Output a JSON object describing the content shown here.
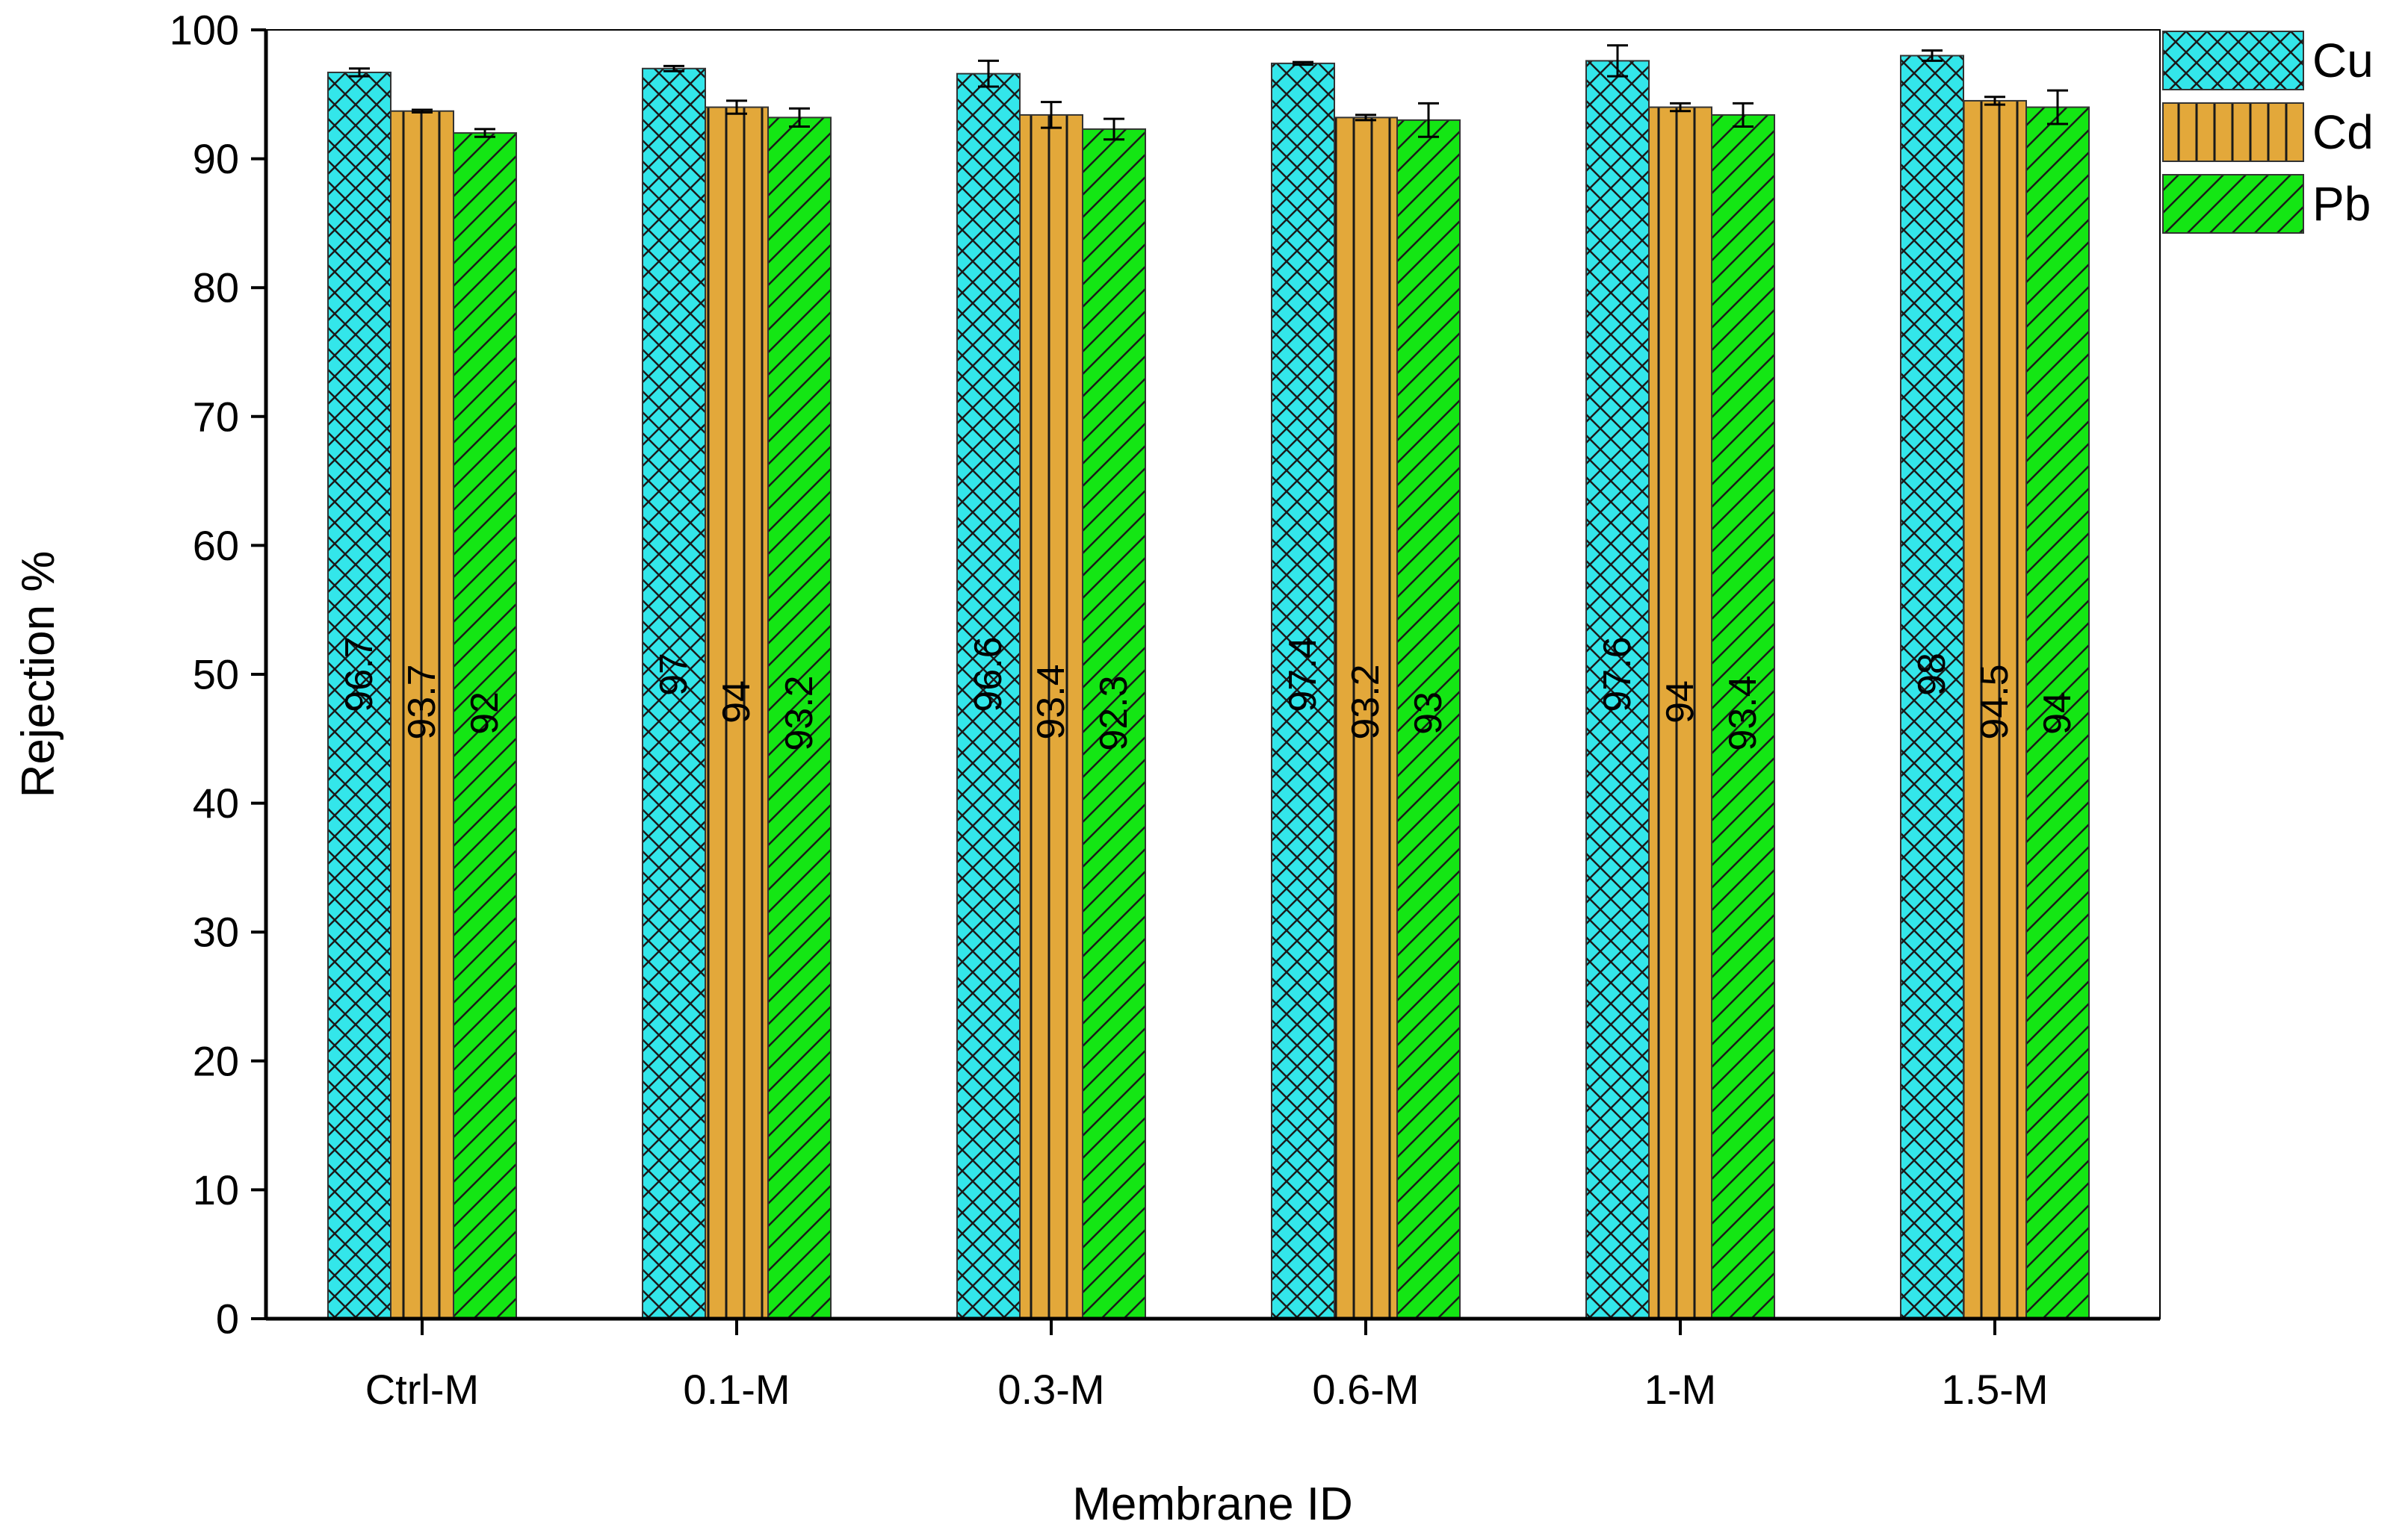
{
  "chart_data": {
    "type": "bar",
    "title": "",
    "xlabel": "Membrane ID",
    "ylabel": "Rejection %",
    "ylim": [
      0,
      100
    ],
    "yticks": [
      "0",
      "10",
      "20",
      "30",
      "40",
      "50",
      "60",
      "70",
      "80",
      "90",
      "100"
    ],
    "categories": [
      "Ctrl-M",
      "0.1-M",
      "0.3-M",
      "0.6-M",
      "1-M",
      "1.5-M"
    ],
    "legend_position": "top-right",
    "series": [
      {
        "name": "Cu",
        "color": "#33e6ea",
        "pattern": "crosshatch",
        "values": [
          96.7,
          97,
          96.6,
          97.4,
          97.6,
          98
        ],
        "labels": [
          "96.7",
          "97",
          "96.6",
          "97.4",
          "97.6",
          "98"
        ],
        "errors": [
          0.3,
          0.2,
          1.0,
          0.1,
          1.2,
          0.4
        ]
      },
      {
        "name": "Cd",
        "color": "#e3a83a",
        "pattern": "vertical",
        "values": [
          93.7,
          94,
          93.4,
          93.2,
          94,
          94.5
        ],
        "labels": [
          "93.7",
          "94",
          "93.4",
          "93.2",
          "94",
          "94.5"
        ],
        "errors": [
          0.1,
          0.5,
          1.0,
          0.2,
          0.3,
          0.3
        ]
      },
      {
        "name": "Pb",
        "color": "#14e614",
        "pattern": "diagonal",
        "values": [
          92,
          93.2,
          92.3,
          93,
          93.4,
          94
        ],
        "labels": [
          "92",
          "93.2",
          "92.3",
          "93",
          "93.4",
          "94"
        ],
        "errors": [
          0.3,
          0.7,
          0.8,
          1.3,
          0.9,
          1.3
        ]
      }
    ]
  }
}
